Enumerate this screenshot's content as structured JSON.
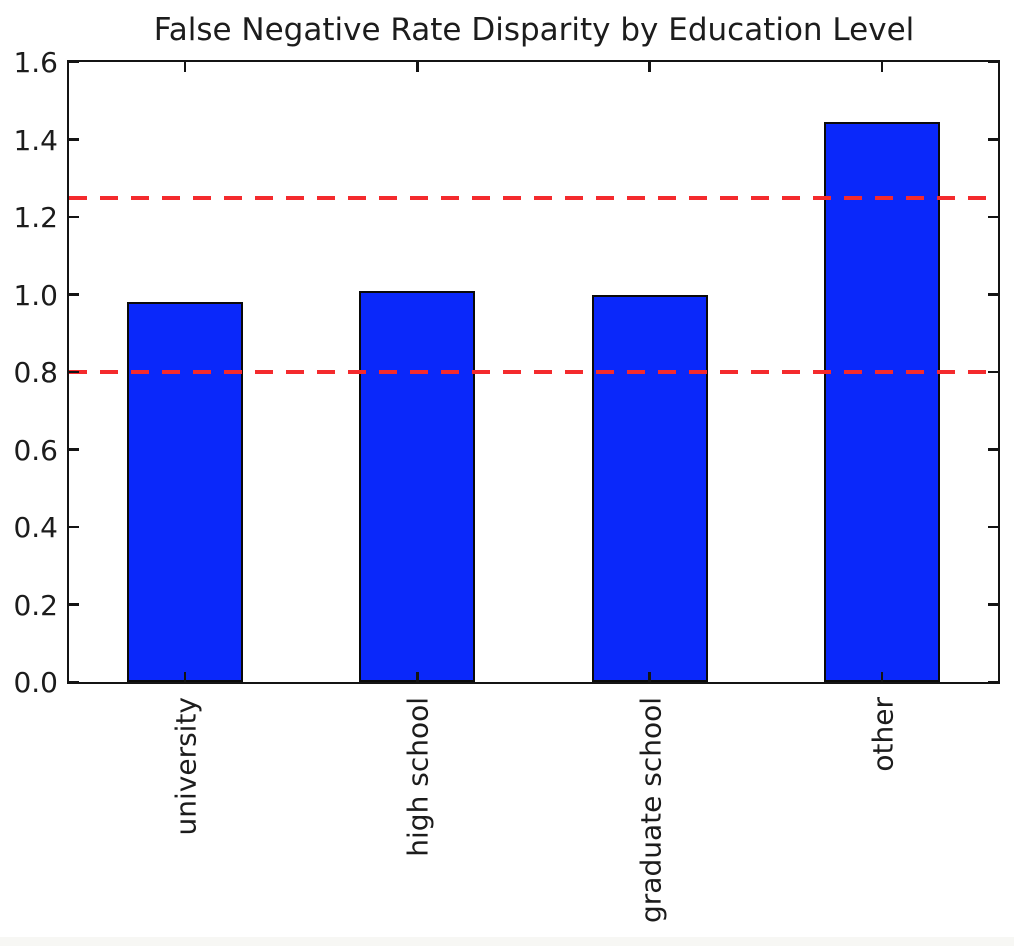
{
  "figure": {
    "background": "#ffffff",
    "text_color": "#1c1c1c"
  },
  "chart_data": {
    "type": "bar",
    "title": "False Negative Rate Disparity by Education Level",
    "categories": [
      "university",
      "high school",
      "graduate school",
      "other"
    ],
    "values": [
      0.98,
      1.01,
      1.0,
      1.445
    ],
    "xlabel": "",
    "ylabel": "",
    "ylim": [
      0,
      1.6
    ],
    "y_ticks": [
      0.0,
      0.2,
      0.4,
      0.6,
      0.8,
      1.0,
      1.2,
      1.4,
      1.6
    ],
    "y_tick_labels": [
      "0.0",
      "0.2",
      "0.4",
      "0.6",
      "0.8",
      "1.0",
      "1.2",
      "1.4",
      "1.6"
    ],
    "x_tick_label_rotation_deg": 90,
    "grid": false,
    "legend": false,
    "bar_color": "#0a28fa",
    "bar_edge_color": "#0a0a0a",
    "bar_width_fraction": 0.5,
    "threshold_lines": [
      {
        "y": 0.8,
        "color": "#f42a2d",
        "style": "dashed"
      },
      {
        "y": 1.25,
        "color": "#f42a2d",
        "style": "dashed"
      }
    ]
  }
}
